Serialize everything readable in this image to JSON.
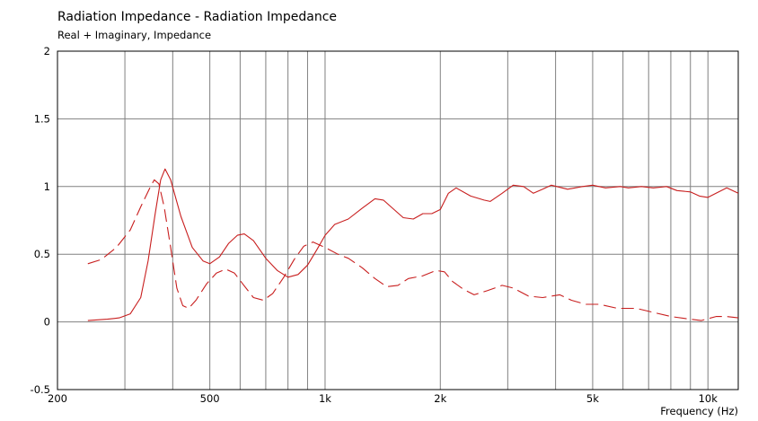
{
  "chart_data": {
    "type": "line",
    "title": "Radiation Impedance - Radiation Impedance",
    "subtitle": "Real + Imaginary, Impedance",
    "xlabel": "Frequency  (Hz)",
    "x_scale": "log",
    "xlim": [
      200,
      12000
    ],
    "ylim": [
      -0.5,
      2
    ],
    "y_ticks": [
      {
        "v": 2,
        "label": "2"
      },
      {
        "v": 1.5,
        "label": "1.5"
      },
      {
        "v": 1,
        "label": "1"
      },
      {
        "v": 0.5,
        "label": "0.5"
      },
      {
        "v": 0,
        "label": "0"
      },
      {
        "v": -0.5,
        "label": "-0.5"
      }
    ],
    "x_tick_labels": [
      {
        "v": 200,
        "label": "200"
      },
      {
        "v": 500,
        "label": "500"
      },
      {
        "v": 1000,
        "label": "1k"
      },
      {
        "v": 2000,
        "label": "2k"
      },
      {
        "v": 5000,
        "label": "5k"
      },
      {
        "v": 10000,
        "label": "10k"
      }
    ],
    "x_grid": [
      300,
      400,
      500,
      600,
      700,
      800,
      900,
      1000,
      2000,
      3000,
      4000,
      5000,
      6000,
      7000,
      8000,
      9000,
      10000
    ],
    "grid": true,
    "series": [
      {
        "style": "solid",
        "color": "#c81e1e",
        "points": [
          [
            240,
            0.01
          ],
          [
            270,
            0.02
          ],
          [
            290,
            0.03
          ],
          [
            310,
            0.06
          ],
          [
            330,
            0.18
          ],
          [
            345,
            0.45
          ],
          [
            360,
            0.8
          ],
          [
            372,
            1.05
          ],
          [
            382,
            1.13
          ],
          [
            395,
            1.05
          ],
          [
            420,
            0.78
          ],
          [
            450,
            0.55
          ],
          [
            480,
            0.45
          ],
          [
            500,
            0.43
          ],
          [
            530,
            0.48
          ],
          [
            560,
            0.58
          ],
          [
            590,
            0.64
          ],
          [
            615,
            0.65
          ],
          [
            650,
            0.6
          ],
          [
            700,
            0.47
          ],
          [
            750,
            0.38
          ],
          [
            800,
            0.33
          ],
          [
            850,
            0.35
          ],
          [
            900,
            0.42
          ],
          [
            950,
            0.53
          ],
          [
            1000,
            0.64
          ],
          [
            1060,
            0.72
          ],
          [
            1150,
            0.76
          ],
          [
            1250,
            0.84
          ],
          [
            1350,
            0.91
          ],
          [
            1420,
            0.9
          ],
          [
            1500,
            0.84
          ],
          [
            1600,
            0.77
          ],
          [
            1700,
            0.76
          ],
          [
            1800,
            0.8
          ],
          [
            1900,
            0.8
          ],
          [
            2000,
            0.83
          ],
          [
            2100,
            0.95
          ],
          [
            2200,
            0.99
          ],
          [
            2400,
            0.93
          ],
          [
            2600,
            0.9
          ],
          [
            2700,
            0.89
          ],
          [
            2900,
            0.95
          ],
          [
            3100,
            1.01
          ],
          [
            3300,
            1.0
          ],
          [
            3500,
            0.95
          ],
          [
            3700,
            0.98
          ],
          [
            3900,
            1.01
          ],
          [
            4300,
            0.98
          ],
          [
            4700,
            1.0
          ],
          [
            5000,
            1.01
          ],
          [
            5400,
            0.99
          ],
          [
            5900,
            1.0
          ],
          [
            6200,
            0.99
          ],
          [
            6700,
            1.0
          ],
          [
            7200,
            0.99
          ],
          [
            7800,
            1.0
          ],
          [
            8300,
            0.97
          ],
          [
            9000,
            0.96
          ],
          [
            9500,
            0.93
          ],
          [
            10000,
            0.92
          ],
          [
            10500,
            0.95
          ],
          [
            11200,
            0.99
          ],
          [
            12000,
            0.95
          ]
        ]
      },
      {
        "style": "dashed",
        "color": "#c81e1e",
        "points": [
          [
            240,
            0.43
          ],
          [
            260,
            0.46
          ],
          [
            285,
            0.55
          ],
          [
            310,
            0.68
          ],
          [
            330,
            0.85
          ],
          [
            350,
            1.0
          ],
          [
            358,
            1.05
          ],
          [
            368,
            1.02
          ],
          [
            380,
            0.85
          ],
          [
            395,
            0.55
          ],
          [
            410,
            0.25
          ],
          [
            425,
            0.12
          ],
          [
            440,
            0.1
          ],
          [
            460,
            0.16
          ],
          [
            490,
            0.28
          ],
          [
            520,
            0.36
          ],
          [
            550,
            0.39
          ],
          [
            580,
            0.36
          ],
          [
            610,
            0.28
          ],
          [
            650,
            0.18
          ],
          [
            690,
            0.16
          ],
          [
            730,
            0.21
          ],
          [
            780,
            0.33
          ],
          [
            830,
            0.46
          ],
          [
            880,
            0.56
          ],
          [
            930,
            0.59
          ],
          [
            1000,
            0.55
          ],
          [
            1080,
            0.5
          ],
          [
            1150,
            0.47
          ],
          [
            1250,
            0.4
          ],
          [
            1350,
            0.32
          ],
          [
            1450,
            0.26
          ],
          [
            1550,
            0.27
          ],
          [
            1650,
            0.32
          ],
          [
            1800,
            0.34
          ],
          [
            1950,
            0.38
          ],
          [
            2050,
            0.37
          ],
          [
            2150,
            0.3
          ],
          [
            2300,
            0.24
          ],
          [
            2450,
            0.2
          ],
          [
            2650,
            0.23
          ],
          [
            2900,
            0.27
          ],
          [
            3100,
            0.25
          ],
          [
            3400,
            0.19
          ],
          [
            3700,
            0.18
          ],
          [
            4100,
            0.2
          ],
          [
            4400,
            0.16
          ],
          [
            4800,
            0.13
          ],
          [
            5200,
            0.13
          ],
          [
            5800,
            0.1
          ],
          [
            6500,
            0.1
          ],
          [
            7200,
            0.07
          ],
          [
            8000,
            0.04
          ],
          [
            9000,
            0.02
          ],
          [
            9600,
            0.01
          ],
          [
            10500,
            0.04
          ],
          [
            11200,
            0.04
          ],
          [
            12000,
            0.03
          ]
        ]
      }
    ]
  }
}
